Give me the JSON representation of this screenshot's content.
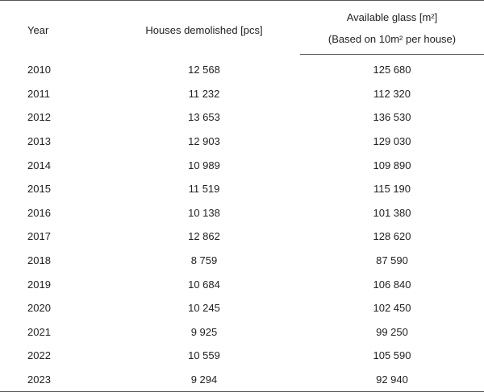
{
  "table": {
    "headers": {
      "year": "Year",
      "houses": "Houses demolished [pcs]",
      "glass_line1": "Available glass [m²]",
      "glass_line2": "(Based on 10m² per house)"
    },
    "rows": [
      {
        "year": "2010",
        "houses": "12 568",
        "glass": "125 680"
      },
      {
        "year": "2011",
        "houses": "11 232",
        "glass": "112 320"
      },
      {
        "year": "2012",
        "houses": "13 653",
        "glass": "136 530"
      },
      {
        "year": "2013",
        "houses": "12 903",
        "glass": "129 030"
      },
      {
        "year": "2014",
        "houses": "10 989",
        "glass": "109 890"
      },
      {
        "year": "2015",
        "houses": "11 519",
        "glass": "115 190"
      },
      {
        "year": "2016",
        "houses": "10 138",
        "glass": "101 380"
      },
      {
        "year": "2017",
        "houses": "12 862",
        "glass": "128 620"
      },
      {
        "year": "2018",
        "houses": "8 759",
        "glass": "87 590"
      },
      {
        "year": "2019",
        "houses": "10 684",
        "glass": "106 840"
      },
      {
        "year": "2020",
        "houses": "10 245",
        "glass": "102 450"
      },
      {
        "year": "2021",
        "houses": "9 925",
        "glass": "99 250"
      },
      {
        "year": "2022",
        "houses": "10 559",
        "glass": "105 590"
      },
      {
        "year": "2023",
        "houses": "9 294",
        "glass": "92 940"
      }
    ]
  }
}
